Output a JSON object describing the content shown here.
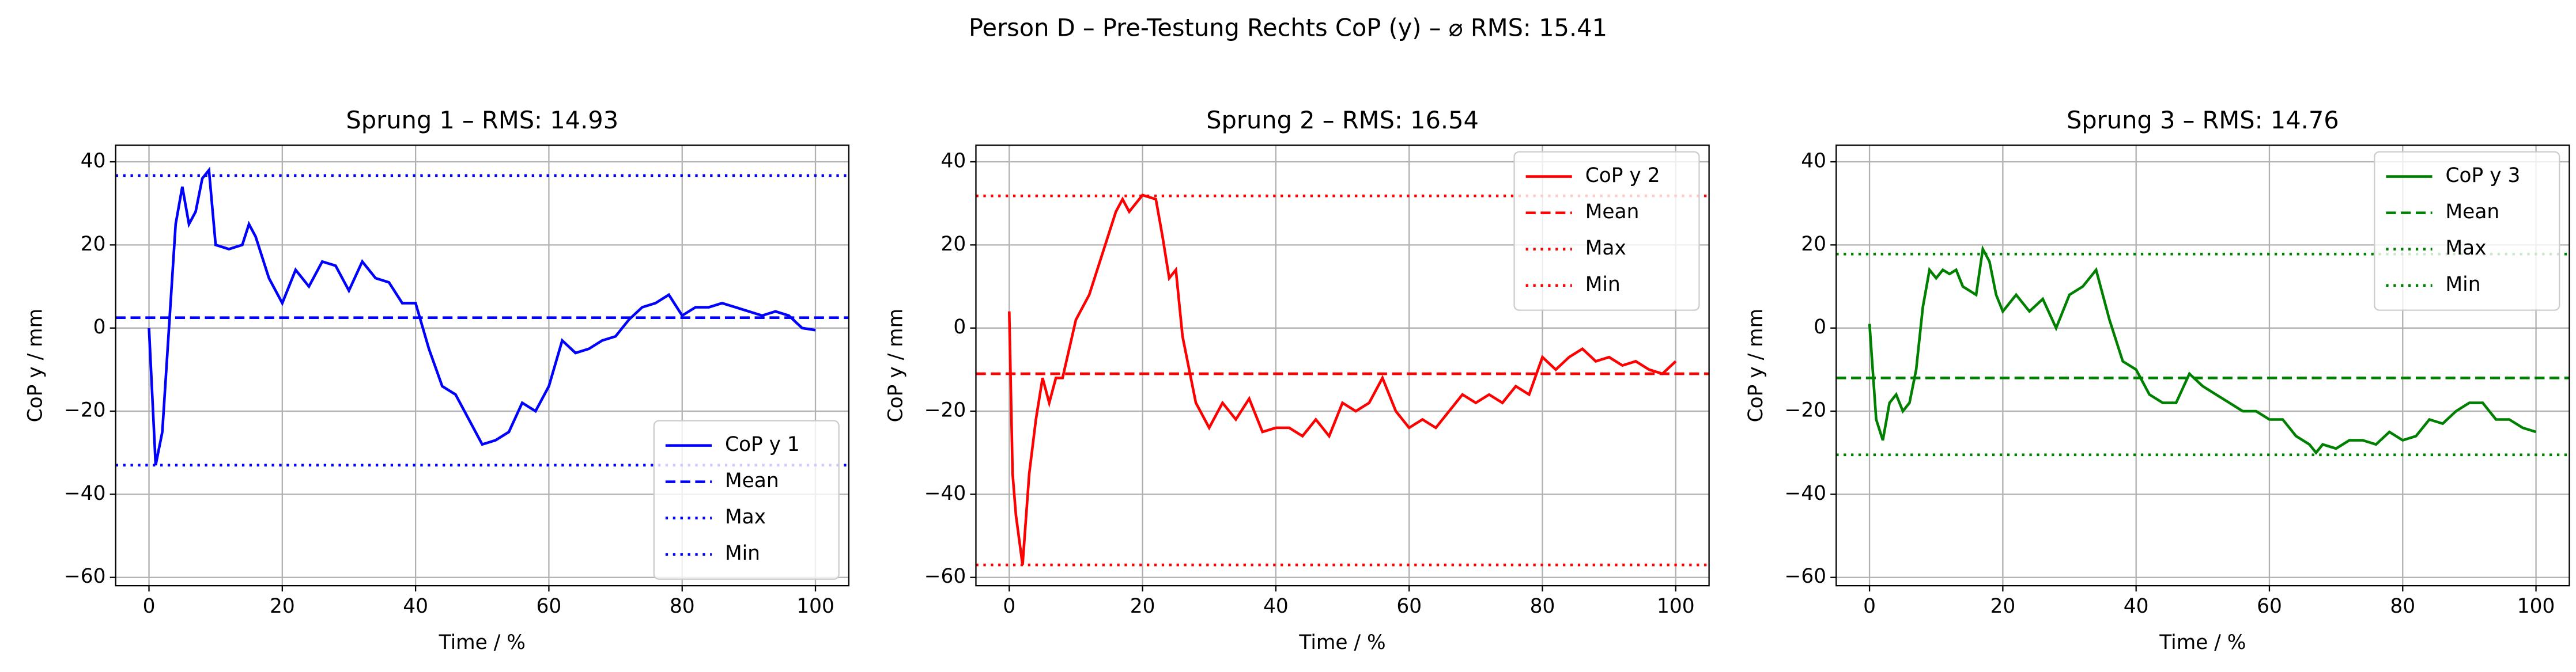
{
  "title": "Person D – Pre-Testung Rechts CoP (y) – ⌀ RMS: 15.41",
  "chart_data": [
    {
      "type": "line",
      "title": "Sprung 1 – RMS: 14.93",
      "xlabel": "Time / %",
      "ylabel": "CoP y / mm",
      "xlim": [
        -5,
        105
      ],
      "ylim": [
        -62,
        44
      ],
      "xticks": [
        0,
        20,
        40,
        60,
        80,
        100
      ],
      "yticks": [
        {
          "value": -60,
          "label": "−60"
        },
        {
          "value": -40,
          "label": "−40"
        },
        {
          "value": -20,
          "label": "−20"
        },
        0,
        20,
        40
      ],
      "grid": true,
      "legend": "lower right",
      "series": [
        {
          "name": "CoP y 1",
          "color": "#0000ff",
          "linestyle": "solid",
          "x": [
            0,
            1,
            2,
            3,
            4,
            5,
            6,
            7,
            8,
            9,
            10,
            12,
            14,
            15,
            16,
            18,
            20,
            22,
            24,
            26,
            28,
            30,
            32,
            34,
            36,
            38,
            40,
            42,
            44,
            46,
            48,
            50,
            52,
            54,
            56,
            58,
            60,
            62,
            64,
            66,
            68,
            70,
            72,
            74,
            76,
            78,
            80,
            82,
            84,
            86,
            88,
            90,
            92,
            94,
            96,
            98,
            100
          ],
          "values": [
            0,
            -33,
            -25,
            0,
            25,
            34,
            25,
            28,
            36,
            38,
            20,
            19,
            20,
            25,
            22,
            12,
            6,
            14,
            10,
            16,
            15,
            9,
            16,
            12,
            11,
            6,
            6,
            -5,
            -14,
            -16,
            -22,
            -28,
            -27,
            -25,
            -18,
            -20,
            -14,
            -3,
            -6,
            -5,
            -3,
            -2,
            2,
            5,
            6,
            8,
            3,
            5,
            5,
            6,
            5,
            4,
            3,
            4,
            3,
            0,
            -0.5
          ]
        },
        {
          "name": "Mean",
          "color": "#0000ff",
          "linestyle": "dashed",
          "value": 2.5
        },
        {
          "name": "Max",
          "color": "#0000ff",
          "linestyle": "dotted",
          "value": 36.7
        },
        {
          "name": "Min",
          "color": "#0000ff",
          "linestyle": "dotted",
          "value": -33
        }
      ]
    },
    {
      "type": "line",
      "title": "Sprung 2 – RMS: 16.54",
      "xlabel": "Time / %",
      "ylabel": "CoP y / mm",
      "xlim": [
        -5,
        105
      ],
      "ylim": [
        -62,
        44
      ],
      "xticks": [
        0,
        20,
        40,
        60,
        80,
        100
      ],
      "yticks": [
        {
          "value": -60,
          "label": "−60"
        },
        {
          "value": -40,
          "label": "−40"
        },
        {
          "value": -20,
          "label": "−20"
        },
        0,
        20,
        40
      ],
      "grid": true,
      "legend": "upper right",
      "series": [
        {
          "name": "CoP y 2",
          "color": "#ff0000",
          "linestyle": "solid",
          "x": [
            0,
            0.5,
            1,
            2,
            3,
            4,
            5,
            6,
            7,
            8,
            10,
            12,
            14,
            16,
            17,
            18,
            19,
            20,
            22,
            23,
            24,
            25,
            26,
            27,
            28,
            30,
            32,
            34,
            36,
            38,
            40,
            42,
            44,
            46,
            48,
            50,
            52,
            54,
            56,
            58,
            60,
            62,
            64,
            66,
            68,
            70,
            72,
            74,
            76,
            78,
            80,
            82,
            84,
            86,
            88,
            90,
            92,
            94,
            96,
            98,
            100
          ],
          "values": [
            4,
            -35,
            -45,
            -57,
            -35,
            -22,
            -12,
            -18,
            -12,
            -12,
            2,
            8,
            18,
            28,
            31,
            28,
            30,
            32,
            31,
            22,
            12,
            14,
            -2,
            -10,
            -18,
            -24,
            -18,
            -22,
            -17,
            -25,
            -24,
            -24,
            -26,
            -22,
            -26,
            -18,
            -20,
            -18,
            -12,
            -20,
            -24,
            -22,
            -24,
            -20,
            -16,
            -18,
            -16,
            -18,
            -14,
            -16,
            -7,
            -10,
            -7,
            -5,
            -8,
            -7,
            -9,
            -8,
            -10,
            -11,
            -8
          ]
        },
        {
          "name": "Mean",
          "color": "#ff0000",
          "linestyle": "dashed",
          "value": -11
        },
        {
          "name": "Max",
          "color": "#ff0000",
          "linestyle": "dotted",
          "value": 31.8
        },
        {
          "name": "Min",
          "color": "#ff0000",
          "linestyle": "dotted",
          "value": -57
        }
      ]
    },
    {
      "type": "line",
      "title": "Sprung 3 – RMS: 14.76",
      "xlabel": "Time / %",
      "ylabel": "CoP y / mm",
      "xlim": [
        -5,
        105
      ],
      "ylim": [
        -62,
        44
      ],
      "xticks": [
        0,
        20,
        40,
        60,
        80,
        100
      ],
      "yticks": [
        {
          "value": -60,
          "label": "−60"
        },
        {
          "value": -40,
          "label": "−40"
        },
        {
          "value": -20,
          "label": "−20"
        },
        0,
        20,
        40
      ],
      "grid": true,
      "legend": "upper right",
      "series": [
        {
          "name": "CoP y 3",
          "color": "#008000",
          "linestyle": "solid",
          "x": [
            0,
            1,
            2,
            3,
            4,
            5,
            6,
            7,
            8,
            9,
            10,
            11,
            12,
            13,
            14,
            16,
            17,
            18,
            19,
            20,
            22,
            24,
            26,
            28,
            30,
            32,
            34,
            36,
            38,
            40,
            42,
            44,
            46,
            48,
            50,
            52,
            54,
            56,
            58,
            60,
            62,
            64,
            66,
            67,
            68,
            70,
            72,
            74,
            76,
            78,
            80,
            82,
            84,
            86,
            88,
            90,
            92,
            94,
            96,
            98,
            100
          ],
          "values": [
            1,
            -22,
            -27,
            -18,
            -16,
            -20,
            -18,
            -10,
            5,
            14,
            12,
            14,
            13,
            14,
            10,
            8,
            19,
            16,
            8,
            4,
            8,
            4,
            7,
            0,
            8,
            10,
            14,
            2,
            -8,
            -10,
            -16,
            -18,
            -18,
            -11,
            -14,
            -16,
            -18,
            -20,
            -20,
            -22,
            -22,
            -26,
            -28,
            -30,
            -28,
            -29,
            -27,
            -27,
            -28,
            -25,
            -27,
            -26,
            -22,
            -23,
            -20,
            -18,
            -18,
            -22,
            -22,
            -24,
            -25
          ]
        },
        {
          "name": "Mean",
          "color": "#008000",
          "linestyle": "dashed",
          "value": -12
        },
        {
          "name": "Max",
          "color": "#008000",
          "linestyle": "dotted",
          "value": 17.8
        },
        {
          "name": "Min",
          "color": "#008000",
          "linestyle": "dotted",
          "value": -30.5
        }
      ]
    }
  ]
}
